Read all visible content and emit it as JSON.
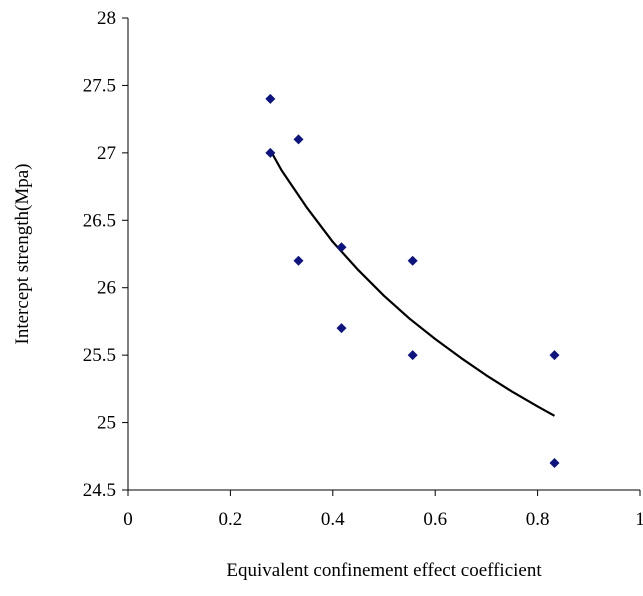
{
  "chart_data": {
    "type": "scatter",
    "xlabel": "Equivalent confinement effect coefficient",
    "ylabel": "Intercept strength(Mpa)",
    "xlim": [
      0,
      1
    ],
    "ylim": [
      24.5,
      28
    ],
    "x_ticks": [
      "0",
      "0.2",
      "0.4",
      "0.6",
      "0.8",
      "1"
    ],
    "y_ticks": [
      "24.5",
      "25",
      "25.5",
      "26",
      "26.5",
      "27",
      "27.5",
      "28"
    ],
    "grid": false,
    "legend": "none",
    "marker_color": "#0d1380",
    "points": [
      {
        "x": 0.278,
        "y": 27.4
      },
      {
        "x": 0.278,
        "y": 27.0
      },
      {
        "x": 0.333,
        "y": 27.1
      },
      {
        "x": 0.333,
        "y": 26.2
      },
      {
        "x": 0.417,
        "y": 26.3
      },
      {
        "x": 0.417,
        "y": 25.7
      },
      {
        "x": 0.556,
        "y": 26.2
      },
      {
        "x": 0.556,
        "y": 25.5
      },
      {
        "x": 0.833,
        "y": 25.5
      },
      {
        "x": 0.833,
        "y": 24.7
      }
    ],
    "trendline": {
      "type": "power",
      "color": "#000000",
      "x": [
        0.278,
        0.3,
        0.35,
        0.4,
        0.45,
        0.5,
        0.55,
        0.6,
        0.65,
        0.7,
        0.75,
        0.8,
        0.833
      ],
      "y": [
        27.02,
        26.87,
        26.59,
        26.34,
        26.13,
        25.94,
        25.77,
        25.62,
        25.48,
        25.35,
        25.23,
        25.12,
        25.05
      ]
    }
  }
}
